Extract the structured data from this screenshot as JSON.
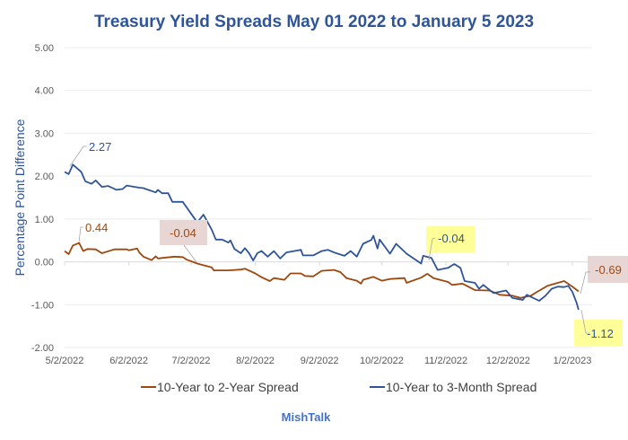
{
  "chart_data": {
    "type": "line",
    "title": "Treasury Yield Spreads May 01 2022 to January 5 2023",
    "ylabel": "Percentage Point Difference",
    "xlabel": "",
    "ylim": [
      -2,
      5
    ],
    "yticks": [
      "5.00",
      "4.00",
      "3.00",
      "2.00",
      "1.00",
      "0.00",
      "-1.00",
      "-2.00"
    ],
    "ytick_values": [
      5,
      4,
      3,
      2,
      1,
      0,
      -1,
      -2
    ],
    "xticks": [
      "5/2/2022",
      "6/2/2022",
      "7/2/2022",
      "8/2/2022",
      "9/2/2022",
      "10/2/2022",
      "11/2/2022",
      "12/2/2022",
      "1/2/2023"
    ],
    "xtick_dates": [
      "2022-05-02",
      "2022-06-02",
      "2022-07-02",
      "2022-08-02",
      "2022-09-02",
      "2022-10-02",
      "2022-11-02",
      "2022-12-02",
      "2023-01-02"
    ],
    "xlim": [
      "2022-05-02",
      "2023-01-05"
    ],
    "grid": "horizontal",
    "legend_position": "bottom",
    "series": [
      {
        "name": "10-Year to 2-Year Spread",
        "color": "#9e480e",
        "points": [
          [
            "2022-05-02",
            0.25
          ],
          [
            "2022-05-04",
            0.18
          ],
          [
            "2022-05-06",
            0.38
          ],
          [
            "2022-05-09",
            0.44
          ],
          [
            "2022-05-11",
            0.25
          ],
          [
            "2022-05-13",
            0.3
          ],
          [
            "2022-05-17",
            0.29
          ],
          [
            "2022-05-20",
            0.2
          ],
          [
            "2022-05-26",
            0.29
          ],
          [
            "2022-06-01",
            0.29
          ],
          [
            "2022-06-02",
            0.27
          ],
          [
            "2022-06-06",
            0.31
          ],
          [
            "2022-06-07",
            0.22
          ],
          [
            "2022-06-09",
            0.12
          ],
          [
            "2022-06-13",
            0.04
          ],
          [
            "2022-06-15",
            0.13
          ],
          [
            "2022-06-16",
            0.08
          ],
          [
            "2022-06-24",
            0.12
          ],
          [
            "2022-06-28",
            0.11
          ],
          [
            "2022-06-30",
            0.05
          ],
          [
            "2022-07-05",
            -0.04
          ],
          [
            "2022-07-08",
            -0.08
          ],
          [
            "2022-07-12",
            -0.13
          ],
          [
            "2022-07-13",
            -0.2
          ],
          [
            "2022-07-20",
            -0.2
          ],
          [
            "2022-07-26",
            -0.18
          ],
          [
            "2022-07-28",
            -0.16
          ],
          [
            "2022-08-02",
            -0.27
          ],
          [
            "2022-08-05",
            -0.36
          ],
          [
            "2022-08-09",
            -0.45
          ],
          [
            "2022-08-11",
            -0.38
          ],
          [
            "2022-08-16",
            -0.42
          ],
          [
            "2022-08-19",
            -0.27
          ],
          [
            "2022-08-24",
            -0.27
          ],
          [
            "2022-08-26",
            -0.33
          ],
          [
            "2022-08-30",
            -0.34
          ],
          [
            "2022-09-03",
            -0.21
          ],
          [
            "2022-09-09",
            -0.19
          ],
          [
            "2022-09-12",
            -0.24
          ],
          [
            "2022-09-15",
            -0.38
          ],
          [
            "2022-09-20",
            -0.44
          ],
          [
            "2022-09-22",
            -0.51
          ],
          [
            "2022-09-23",
            -0.42
          ],
          [
            "2022-09-28",
            -0.35
          ],
          [
            "2022-10-02",
            -0.44
          ],
          [
            "2022-10-06",
            -0.4
          ],
          [
            "2022-10-13",
            -0.38
          ],
          [
            "2022-10-14",
            -0.49
          ],
          [
            "2022-10-21",
            -0.37
          ],
          [
            "2022-10-24",
            -0.28
          ],
          [
            "2022-10-27",
            -0.38
          ],
          [
            "2022-11-03",
            -0.47
          ],
          [
            "2022-11-05",
            -0.54
          ],
          [
            "2022-11-10",
            -0.51
          ],
          [
            "2022-11-16",
            -0.66
          ],
          [
            "2022-11-23",
            -0.67
          ],
          [
            "2022-11-28",
            -0.77
          ],
          [
            "2022-12-04",
            -0.79
          ],
          [
            "2022-12-08",
            -0.84
          ],
          [
            "2022-12-13",
            -0.79
          ],
          [
            "2022-12-16",
            -0.7
          ],
          [
            "2022-12-21",
            -0.56
          ],
          [
            "2022-12-29",
            -0.45
          ],
          [
            "2023-01-02",
            -0.58
          ],
          [
            "2023-01-05",
            -0.69
          ]
        ]
      },
      {
        "name": "10-Year to 3-Month Spread",
        "color": "#2f5597",
        "points": [
          [
            "2022-05-02",
            2.1
          ],
          [
            "2022-05-04",
            2.05
          ],
          [
            "2022-05-06",
            2.27
          ],
          [
            "2022-05-10",
            2.1
          ],
          [
            "2022-05-12",
            1.88
          ],
          [
            "2022-05-15",
            1.82
          ],
          [
            "2022-05-17",
            1.9
          ],
          [
            "2022-05-20",
            1.75
          ],
          [
            "2022-05-23",
            1.77
          ],
          [
            "2022-05-27",
            1.68
          ],
          [
            "2022-05-30",
            1.7
          ],
          [
            "2022-06-01",
            1.78
          ],
          [
            "2022-06-07",
            1.73
          ],
          [
            "2022-06-09",
            1.72
          ],
          [
            "2022-06-15",
            1.62
          ],
          [
            "2022-06-16",
            1.68
          ],
          [
            "2022-06-18",
            1.6
          ],
          [
            "2022-06-21",
            1.6
          ],
          [
            "2022-06-23",
            1.4
          ],
          [
            "2022-06-28",
            1.4
          ],
          [
            "2022-07-05",
            0.92
          ],
          [
            "2022-07-08",
            1.1
          ],
          [
            "2022-07-12",
            0.75
          ],
          [
            "2022-07-14",
            0.52
          ],
          [
            "2022-07-17",
            0.52
          ],
          [
            "2022-07-20",
            0.45
          ],
          [
            "2022-07-21",
            0.5
          ],
          [
            "2022-07-23",
            0.3
          ],
          [
            "2022-07-26",
            0.2
          ],
          [
            "2022-07-28",
            0.32
          ],
          [
            "2022-07-30",
            0.2
          ],
          [
            "2022-08-01",
            0.03
          ],
          [
            "2022-08-03",
            0.2
          ],
          [
            "2022-08-05",
            0.25
          ],
          [
            "2022-08-08",
            0.12
          ],
          [
            "2022-08-11",
            0.25
          ],
          [
            "2022-08-14",
            0.08
          ],
          [
            "2022-08-17",
            0.22
          ],
          [
            "2022-08-24",
            0.28
          ],
          [
            "2022-08-25",
            0.15
          ],
          [
            "2022-08-30",
            0.15
          ],
          [
            "2022-09-03",
            0.25
          ],
          [
            "2022-09-06",
            0.28
          ],
          [
            "2022-09-09",
            0.22
          ],
          [
            "2022-09-14",
            0.14
          ],
          [
            "2022-09-17",
            0.25
          ],
          [
            "2022-09-20",
            0.12
          ],
          [
            "2022-09-23",
            0.42
          ],
          [
            "2022-09-27",
            0.51
          ],
          [
            "2022-09-28",
            0.61
          ],
          [
            "2022-09-30",
            0.31
          ],
          [
            "2022-10-01",
            0.52
          ],
          [
            "2022-10-06",
            0.19
          ],
          [
            "2022-10-09",
            0.42
          ],
          [
            "2022-10-14",
            0.19
          ],
          [
            "2022-10-21",
            -0.04
          ],
          [
            "2022-10-22",
            0.14
          ],
          [
            "2022-10-26",
            0.09
          ],
          [
            "2022-10-29",
            -0.19
          ],
          [
            "2022-11-03",
            -0.14
          ],
          [
            "2022-11-06",
            -0.05
          ],
          [
            "2022-11-09",
            -0.14
          ],
          [
            "2022-11-11",
            -0.45
          ],
          [
            "2022-11-16",
            -0.49
          ],
          [
            "2022-11-18",
            -0.63
          ],
          [
            "2022-11-20",
            -0.54
          ],
          [
            "2022-11-25",
            -0.73
          ],
          [
            "2022-12-01",
            -0.67
          ],
          [
            "2022-12-04",
            -0.84
          ],
          [
            "2022-12-09",
            -0.89
          ],
          [
            "2022-12-11",
            -0.77
          ],
          [
            "2022-12-17",
            -0.91
          ],
          [
            "2022-12-20",
            -0.79
          ],
          [
            "2022-12-23",
            -0.63
          ],
          [
            "2022-12-26",
            -0.58
          ],
          [
            "2022-12-29",
            -0.59
          ],
          [
            "2022-12-31",
            -0.56
          ],
          [
            "2023-01-02",
            -0.7
          ],
          [
            "2023-01-04",
            -0.95
          ],
          [
            "2023-01-05",
            -1.12
          ]
        ]
      }
    ],
    "annotations": [
      {
        "text": "2.27",
        "series": "10-Year to 3-Month Spread",
        "color": "#2f5597",
        "highlight": ""
      },
      {
        "text": "0.44",
        "series": "10-Year to 2-Year Spread",
        "color": "#9e480e",
        "highlight": ""
      },
      {
        "text": "-0.04",
        "series": "10-Year to 2-Year Spread",
        "color": "#9e480e",
        "highlight": "#e8d6d4"
      },
      {
        "text": "-0.04",
        "series": "10-Year to 3-Month Spread",
        "color": "#2f5597",
        "highlight": "#ffff99"
      },
      {
        "text": "-0.69",
        "series": "10-Year to 2-Year Spread",
        "color": "#9e480e",
        "highlight": "#e8d6d4"
      },
      {
        "text": "-1.12",
        "series": "10-Year to 3-Month Spread",
        "color": "#2f5597",
        "highlight": "#ffff99"
      }
    ]
  },
  "footer": "MishTalk"
}
